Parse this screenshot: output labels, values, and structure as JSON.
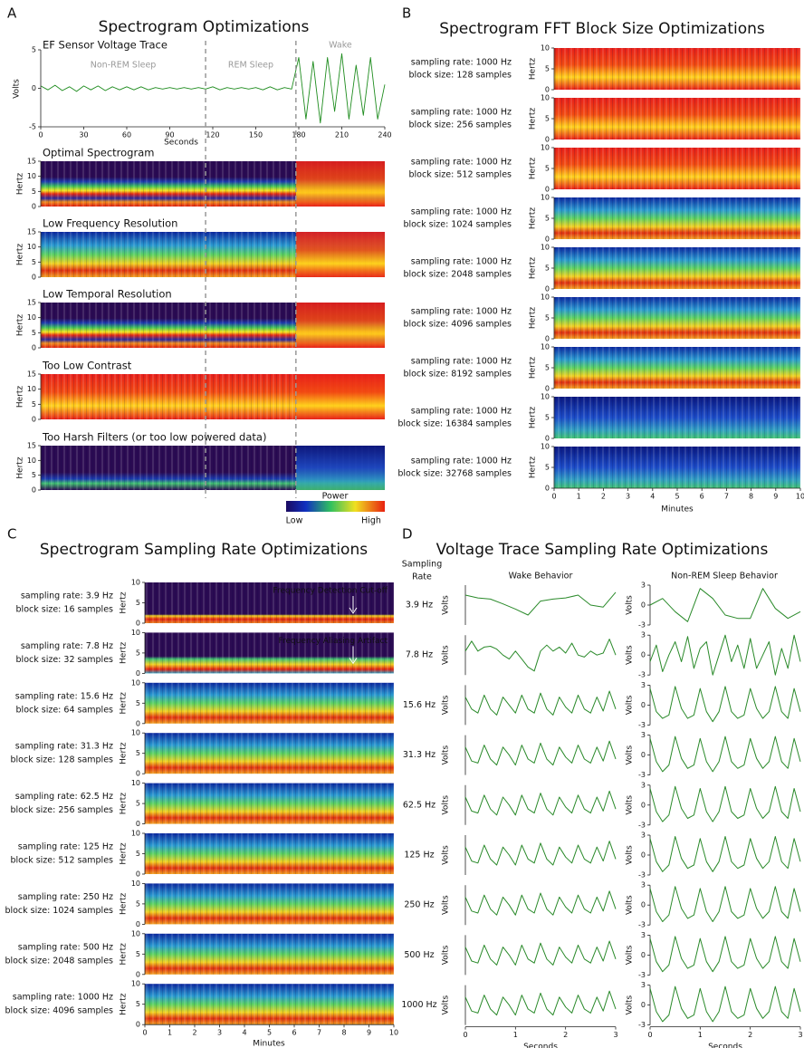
{
  "panel_a": {
    "letter": "A",
    "title": "Spectrogram Optimizations",
    "trace": {
      "type": "line",
      "title": "EF Sensor Voltage Trace",
      "y_label": "Volts",
      "x_label": "Seconds",
      "color": "#1e8c1e",
      "xlim": [
        0,
        240
      ],
      "xticks": [
        0,
        30,
        60,
        90,
        120,
        150,
        180,
        210,
        240
      ],
      "ylim": [
        -5,
        5
      ],
      "yticks": [
        -5,
        0,
        5
      ],
      "x": [
        0,
        5,
        10,
        15,
        20,
        25,
        30,
        35,
        40,
        45,
        50,
        55,
        60,
        65,
        70,
        75,
        80,
        85,
        90,
        95,
        100,
        105,
        110,
        115,
        120,
        125,
        130,
        135,
        140,
        145,
        150,
        155,
        160,
        165,
        170,
        175,
        180,
        185,
        190,
        195,
        200,
        205,
        210,
        215,
        220,
        225,
        230,
        235,
        240
      ],
      "values": [
        0.3,
        -0.2,
        0.4,
        -0.3,
        0.2,
        -0.4,
        0.3,
        -0.2,
        0.3,
        -0.3,
        0.2,
        -0.2,
        0.2,
        -0.2,
        0.2,
        -0.2,
        0.1,
        -0.1,
        0.1,
        -0.1,
        0.1,
        -0.1,
        0.1,
        -0.1,
        0.2,
        -0.2,
        0.1,
        -0.1,
        0.1,
        -0.1,
        0.1,
        -0.2,
        0.2,
        -0.2,
        0.1,
        -0.1,
        4,
        -4,
        3.5,
        -4.5,
        4,
        -3,
        4.5,
        -4,
        3,
        -3.5,
        4,
        -4,
        0.5
      ]
    },
    "states": [
      {
        "name": "Non-REM Sleep",
        "start": 0
      },
      {
        "name": "REM Sleep",
        "start": 115
      },
      {
        "name": "Wake",
        "start": 178
      }
    ],
    "y_label": "Hertz",
    "ylim": [
      0,
      15
    ],
    "yticks": [
      0,
      5,
      10,
      15
    ],
    "spectrograms": [
      "Optimal Spectrogram",
      "Low Frequency Resolution",
      "Low Temporal Resolution",
      "Too Low Contrast",
      "Too Harsh Filters (or too low powered data)"
    ],
    "colorbar": {
      "title": "Power",
      "low": "Low",
      "high": "High"
    }
  },
  "panel_b": {
    "letter": "B",
    "title": "Spectrogram FFT Block Size Optimizations",
    "y_label": "Hertz",
    "x_label": "Minutes",
    "ylim": [
      0,
      10
    ],
    "yticks": [
      0,
      5,
      10
    ],
    "xlim": [
      0,
      10
    ],
    "xticks": [
      0,
      1,
      2,
      3,
      4,
      5,
      6,
      7,
      8,
      9,
      10
    ],
    "rows": [
      {
        "rate": "sampling rate: 1000 Hz",
        "block": "block size: 128 samples"
      },
      {
        "rate": "sampling rate: 1000 Hz",
        "block": "block size: 256 samples"
      },
      {
        "rate": "sampling rate: 1000 Hz",
        "block": "block size: 512 samples"
      },
      {
        "rate": "sampling rate: 1000 Hz",
        "block": "block size: 1024 samples"
      },
      {
        "rate": "sampling rate: 1000 Hz",
        "block": "block size: 2048 samples"
      },
      {
        "rate": "sampling rate: 1000 Hz",
        "block": "block size: 4096 samples"
      },
      {
        "rate": "sampling rate: 1000 Hz",
        "block": "block size: 8192 samples"
      },
      {
        "rate": "sampling rate: 1000 Hz",
        "block": "block size: 16384 samples"
      },
      {
        "rate": "sampling rate: 1000 Hz",
        "block": "block size: 32768 samples"
      }
    ]
  },
  "panel_c": {
    "letter": "C",
    "title": "Spectrogram Sampling Rate Optimizations",
    "y_label": "Hertz",
    "x_label": "Minutes",
    "ylim": [
      0,
      10
    ],
    "yticks": [
      0,
      5,
      10
    ],
    "xlim": [
      0,
      10
    ],
    "xticks": [
      0,
      1,
      2,
      3,
      4,
      5,
      6,
      7,
      8,
      9,
      10
    ],
    "rows": [
      {
        "rate": "sampling rate: 3.9 Hz",
        "block": "block size: 16 samples",
        "annotation": "Frequency Detection Cut-off"
      },
      {
        "rate": "sampling rate: 7.8 Hz",
        "block": "block size: 32 samples",
        "annotation": "Frequency Aliasing Artifact"
      },
      {
        "rate": "sampling rate: 15.6 Hz",
        "block": "block size: 64 samples"
      },
      {
        "rate": "sampling rate: 31.3 Hz",
        "block": "block size: 128 samples"
      },
      {
        "rate": "sampling rate: 62.5 Hz",
        "block": "block size: 256 samples"
      },
      {
        "rate": "sampling rate: 125 Hz",
        "block": "block size: 512 samples"
      },
      {
        "rate": "sampling rate: 250 Hz",
        "block": "block size: 1024 samples"
      },
      {
        "rate": "sampling rate: 500 Hz",
        "block": "block size: 2048 samples"
      },
      {
        "rate": "sampling rate: 1000 Hz",
        "block": "block size: 4096 samples"
      }
    ]
  },
  "panel_d": {
    "letter": "D",
    "title": "Voltage Trace Sampling Rate Optimizations",
    "row_header": [
      "Sampling",
      "Rate"
    ],
    "columns": [
      "Wake Behavior",
      "Non-REM Sleep Behavior"
    ],
    "y_label": "Volts",
    "x_label": "Seconds",
    "color": "#2a8a2a",
    "xlim": [
      0,
      3
    ],
    "xticks": [
      0,
      1,
      2,
      3
    ],
    "wake_ylim": [
      -5,
      5
    ],
    "ylim": [
      -3,
      3
    ],
    "yticks": [
      -3,
      0,
      3
    ],
    "rows": [
      {
        "label": "3.9 Hz",
        "x": [
          0,
          0.25,
          0.5,
          0.75,
          1,
          1.25,
          1.5,
          1.75,
          2,
          2.25,
          2.5,
          2.75,
          3
        ],
        "wake": [
          2.5,
          1.8,
          1.5,
          0.3,
          -1,
          -2.5,
          1,
          1.5,
          1.8,
          2.5,
          0,
          -0.5,
          3.2
        ],
        "sleep": [
          0,
          1,
          -1,
          -2.5,
          2.5,
          1,
          -1.5,
          -2,
          -2,
          2.5,
          -0.5,
          -2,
          -1
        ]
      },
      {
        "label": "7.8 Hz",
        "x": [
          0,
          0.125,
          0.25,
          0.375,
          0.5,
          0.625,
          0.75,
          0.875,
          1,
          1.125,
          1.25,
          1.375,
          1.5,
          1.625,
          1.75,
          1.875,
          2,
          2.125,
          2.25,
          2.375,
          2.5,
          2.625,
          2.75,
          2.875,
          3
        ],
        "wake": [
          1,
          3.5,
          1,
          2,
          2.2,
          1.5,
          0,
          -1,
          1,
          -1,
          -3,
          -4,
          1,
          2.5,
          1,
          2,
          0.5,
          3,
          0,
          -0.5,
          1,
          0,
          0.5,
          4,
          0
        ],
        "sleep": [
          -1,
          1.5,
          -2.5,
          0,
          2,
          -1,
          2.8,
          -2,
          1,
          2,
          -3,
          0,
          3,
          -1,
          1.5,
          -2,
          2.5,
          -2,
          0,
          2,
          -3,
          1,
          -2,
          3,
          -1
        ]
      },
      {
        "label": "15.6 Hz",
        "x": [
          0,
          0.125,
          0.25,
          0.375,
          0.5,
          0.625,
          0.75,
          0.875,
          1,
          1.125,
          1.25,
          1.375,
          1.5,
          1.625,
          1.75,
          1.875,
          2,
          2.125,
          2.25,
          2.375,
          2.5,
          2.625,
          2.75,
          2.875,
          3
        ],
        "wake": [
          2,
          -1,
          -2,
          2.5,
          -1,
          -2.5,
          2,
          0,
          -2,
          2.5,
          -1,
          -2,
          3,
          -1,
          -2.5,
          2,
          -0.5,
          -2,
          2.5,
          -1,
          -2,
          2,
          -1.5,
          3.5,
          -1
        ],
        "sleep": [
          2.5,
          -1,
          -2,
          -1.5,
          2.8,
          -0.5,
          -2,
          -1.5,
          2.5,
          -1,
          -2.5,
          -1,
          2.8,
          -1,
          -2,
          -1.5,
          2.5,
          -0.5,
          -2,
          -1,
          2.8,
          -1,
          -2,
          2.5,
          -1
        ]
      },
      {
        "label": "31.3 Hz",
        "x": [
          0,
          0.125,
          0.25,
          0.375,
          0.5,
          0.625,
          0.75,
          0.875,
          1,
          1.125,
          1.25,
          1.375,
          1.5,
          1.625,
          1.75,
          1.875,
          2,
          2.125,
          2.25,
          2.375,
          2.5,
          2.625,
          2.75,
          2.875,
          3
        ],
        "wake": [
          2,
          -1.5,
          -2,
          2.5,
          -1,
          -2.5,
          2,
          0,
          -2.5,
          2.5,
          -1,
          -2,
          3,
          -1,
          -2.5,
          2,
          -0.5,
          -2,
          2.5,
          -1,
          -2,
          2,
          -1.5,
          3.5,
          -1
        ],
        "sleep": [
          2.5,
          -1,
          -2.5,
          -1.5,
          2.8,
          -0.5,
          -2,
          -1.5,
          2.5,
          -1,
          -2.5,
          -1,
          2.8,
          -1,
          -2,
          -1.5,
          2.5,
          -0.5,
          -2,
          -1,
          2.8,
          -1,
          -2,
          2.5,
          -1
        ]
      },
      {
        "label": "62.5 Hz",
        "x": [
          0,
          0.125,
          0.25,
          0.375,
          0.5,
          0.625,
          0.75,
          0.875,
          1,
          1.125,
          1.25,
          1.375,
          1.5,
          1.625,
          1.75,
          1.875,
          2,
          2.125,
          2.25,
          2.375,
          2.5,
          2.625,
          2.75,
          2.875,
          3
        ],
        "wake": [
          2,
          -1.5,
          -2,
          2.5,
          -1,
          -2.5,
          2,
          0,
          -2.5,
          2.5,
          -1,
          -2,
          3,
          -1,
          -2.5,
          2,
          -0.5,
          -2,
          2.5,
          -1,
          -2,
          2,
          -1.5,
          3.5,
          -1
        ],
        "sleep": [
          2.5,
          -1,
          -2.5,
          -1.5,
          2.8,
          -0.5,
          -2,
          -1.5,
          2.5,
          -1,
          -2.5,
          -1,
          2.8,
          -1,
          -2,
          -1.5,
          2.5,
          -0.5,
          -2,
          -1,
          2.8,
          -1,
          -2,
          2.5,
          -1
        ]
      },
      {
        "label": "125 Hz",
        "x": [
          0,
          0.125,
          0.25,
          0.375,
          0.5,
          0.625,
          0.75,
          0.875,
          1,
          1.125,
          1.25,
          1.375,
          1.5,
          1.625,
          1.75,
          1.875,
          2,
          2.125,
          2.25,
          2.375,
          2.5,
          2.625,
          2.75,
          2.875,
          3
        ],
        "wake": [
          2,
          -1.5,
          -2,
          2.5,
          -1,
          -2.5,
          2,
          0,
          -2.5,
          2.5,
          -1,
          -2,
          3,
          -1,
          -2.5,
          2,
          -0.5,
          -2,
          2.5,
          -1,
          -2,
          2,
          -1.5,
          3.5,
          -1
        ],
        "sleep": [
          2.5,
          -1,
          -2.5,
          -1.5,
          2.8,
          -0.5,
          -2,
          -1.5,
          2.5,
          -1,
          -2.5,
          -1,
          2.8,
          -1,
          -2,
          -1.5,
          2.5,
          -0.5,
          -2,
          -1,
          2.8,
          -1,
          -2,
          2.5,
          -1
        ]
      },
      {
        "label": "250 Hz",
        "x": [
          0,
          0.125,
          0.25,
          0.375,
          0.5,
          0.625,
          0.75,
          0.875,
          1,
          1.125,
          1.25,
          1.375,
          1.5,
          1.625,
          1.75,
          1.875,
          2,
          2.125,
          2.25,
          2.375,
          2.5,
          2.625,
          2.75,
          2.875,
          3
        ],
        "wake": [
          2,
          -1.5,
          -2,
          2.5,
          -1,
          -2.5,
          2,
          0,
          -2.5,
          2.5,
          -1,
          -2,
          3,
          -1,
          -2.5,
          2,
          -0.5,
          -2,
          2.5,
          -1,
          -2,
          2,
          -1.5,
          3.5,
          -1
        ],
        "sleep": [
          2.5,
          -1,
          -2.5,
          -1.5,
          2.8,
          -0.5,
          -2,
          -1.5,
          2.5,
          -1,
          -2.5,
          -1,
          2.8,
          -1,
          -2,
          -1.5,
          2.5,
          -0.5,
          -2,
          -1,
          2.8,
          -1,
          -2,
          2.5,
          -1
        ]
      },
      {
        "label": "500 Hz",
        "x": [
          0,
          0.125,
          0.25,
          0.375,
          0.5,
          0.625,
          0.75,
          0.875,
          1,
          1.125,
          1.25,
          1.375,
          1.5,
          1.625,
          1.75,
          1.875,
          2,
          2.125,
          2.25,
          2.375,
          2.5,
          2.625,
          2.75,
          2.875,
          3
        ],
        "wake": [
          2,
          -1.5,
          -2,
          2.5,
          -1,
          -2.5,
          2,
          0,
          -2.5,
          2.5,
          -1,
          -2,
          3,
          -1,
          -2.5,
          2,
          -0.5,
          -2,
          2.5,
          -1,
          -2,
          2,
          -1.5,
          3.5,
          -1
        ],
        "sleep": [
          2.5,
          -1,
          -2.5,
          -1.5,
          2.8,
          -0.5,
          -2,
          -1.5,
          2.5,
          -1,
          -2.5,
          -1,
          2.8,
          -1,
          -2,
          -1.5,
          2.5,
          -0.5,
          -2,
          -1,
          2.8,
          -1,
          -2,
          2.5,
          -1
        ]
      },
      {
        "label": "1000 Hz",
        "x": [
          0,
          0.125,
          0.25,
          0.375,
          0.5,
          0.625,
          0.75,
          0.875,
          1,
          1.125,
          1.25,
          1.375,
          1.5,
          1.625,
          1.75,
          1.875,
          2,
          2.125,
          2.25,
          2.375,
          2.5,
          2.625,
          2.75,
          2.875,
          3
        ],
        "wake": [
          2,
          -1.5,
          -2,
          2.5,
          -1,
          -2.5,
          2,
          0,
          -2.5,
          2.5,
          -1,
          -2,
          3,
          -1,
          -2.5,
          2,
          -0.5,
          -2,
          2.5,
          -1,
          -2,
          2,
          -1.5,
          3.5,
          -1
        ],
        "sleep": [
          2.5,
          -1,
          -2.5,
          -1.5,
          2.8,
          -0.5,
          -2,
          -1.5,
          2.5,
          -1,
          -2.5,
          -1,
          2.8,
          -1,
          -2,
          -1.5,
          2.5,
          -0.5,
          -2,
          -1,
          2.8,
          -1,
          -2,
          2.5,
          -1
        ]
      }
    ]
  }
}
